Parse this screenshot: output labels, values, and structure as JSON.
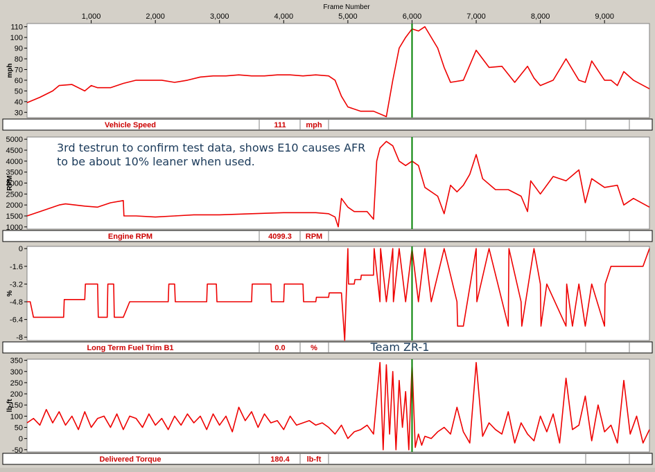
{
  "x_axis": {
    "title": "Frame Number",
    "range": [
      0,
      9700
    ],
    "ticks": [
      1000,
      2000,
      3000,
      4000,
      5000,
      6000,
      7000,
      8000,
      9000
    ],
    "tick_labels": [
      "1,000",
      "2,000",
      "3,000",
      "4,000",
      "5,000",
      "6,000",
      "7,000",
      "8,000",
      "9,000"
    ]
  },
  "cursor_frame": 6000,
  "annotation": "3rd testrun to confirm test data, shows E10 causes AFR to be about 10% leaner when used.",
  "team_label": "Team ZR-1",
  "colors": {
    "trace": "#ee0000",
    "cursor": "#008000",
    "cursor_marker": "#4a7cff",
    "label": "#cc0000",
    "annotation": "#1a3a5a"
  },
  "chart_data": [
    {
      "type": "line",
      "ylabel": "mph",
      "ylim": [
        25,
        113
      ],
      "yticks": [
        30,
        40,
        50,
        60,
        70,
        80,
        90,
        100,
        110
      ],
      "channel": {
        "name": "Vehicle Speed",
        "value": "111",
        "unit": "mph"
      },
      "series": [
        {
          "x": [
            0,
            200,
            400,
            500,
            700,
            900,
            1000,
            1100,
            1300,
            1500,
            1700,
            1900,
            2100,
            2300,
            2500,
            2700,
            2900,
            3100,
            3300,
            3500,
            3700,
            3900,
            4100,
            4300,
            4500,
            4700,
            4800,
            4900,
            5000,
            5200,
            5400,
            5600,
            5700,
            5800,
            5900,
            6000,
            6100,
            6200,
            6400,
            6500,
            6600,
            6800,
            7000,
            7200,
            7400,
            7600,
            7800,
            7900,
            8000,
            8200,
            8400,
            8600,
            8700,
            8800,
            9000,
            9100,
            9200,
            9300,
            9450,
            9700
          ],
          "y": [
            39,
            44,
            50,
            55,
            56,
            50,
            55,
            53,
            53,
            57,
            60,
            60,
            60,
            58,
            60,
            63,
            64,
            64,
            65,
            64,
            64,
            65,
            65,
            64,
            65,
            64,
            60,
            45,
            35,
            31,
            31,
            26,
            60,
            90,
            100,
            108,
            106,
            110,
            90,
            72,
            58,
            60,
            88,
            72,
            73,
            58,
            73,
            62,
            55,
            60,
            80,
            60,
            58,
            78,
            60,
            60,
            55,
            68,
            60,
            52
          ]
        }
      ]
    },
    {
      "type": "line",
      "ylabel": "RPM",
      "ylim": [
        900,
        5100
      ],
      "yticks": [
        1000,
        1500,
        2000,
        2500,
        3000,
        3500,
        4000,
        4500,
        5000
      ],
      "channel": {
        "name": "Engine RPM",
        "value": "4099.3",
        "unit": "RPM"
      },
      "series": [
        {
          "x": [
            0,
            200,
            500,
            600,
            900,
            1100,
            1300,
            1500,
            1510,
            1700,
            2000,
            2300,
            2600,
            3000,
            3500,
            4000,
            4500,
            4700,
            4800,
            4850,
            4900,
            5000,
            5100,
            5300,
            5400,
            5450,
            5500,
            5600,
            5700,
            5800,
            5900,
            6000,
            6100,
            6200,
            6400,
            6500,
            6600,
            6700,
            6800,
            6900,
            7000,
            7100,
            7300,
            7500,
            7700,
            7800,
            7850,
            8000,
            8200,
            8400,
            8600,
            8700,
            8800,
            9000,
            9200,
            9300,
            9450,
            9700
          ],
          "y": [
            1500,
            1700,
            2000,
            2050,
            1950,
            1900,
            2100,
            2200,
            1500,
            1500,
            1450,
            1500,
            1550,
            1550,
            1600,
            1650,
            1650,
            1600,
            1450,
            1000,
            2300,
            1900,
            1700,
            1700,
            1350,
            4000,
            4600,
            4900,
            4700,
            4000,
            3800,
            4000,
            3800,
            2800,
            2400,
            1600,
            2900,
            2600,
            2900,
            3400,
            4300,
            3200,
            2700,
            2700,
            2400,
            1700,
            3100,
            2500,
            3300,
            3100,
            3600,
            2100,
            3200,
            2800,
            2900,
            2000,
            2300,
            1900
          ]
        }
      ]
    },
    {
      "type": "line",
      "ylabel": "%",
      "ylim": [
        -8.3,
        0.2
      ],
      "yticks": [
        0,
        -1.6,
        -3.2,
        -4.8,
        -6.4,
        -8
      ],
      "tick_labels": [
        "0",
        "-1.6",
        "-3.2",
        "-4.8",
        "-6.4",
        "-8"
      ],
      "channel": {
        "name": "Long Term Fuel Trim B1",
        "value": "0.0",
        "unit": "%"
      },
      "series": [
        {
          "x": [
            0,
            50,
            100,
            570,
            580,
            900,
            910,
            1100,
            1110,
            1250,
            1260,
            1350,
            1360,
            1500,
            1600,
            1610,
            2200,
            2210,
            2300,
            2310,
            2800,
            2810,
            2950,
            2960,
            3500,
            3510,
            3800,
            3810,
            4000,
            4010,
            4300,
            4310,
            4500,
            4510,
            4700,
            4710,
            4900,
            4950,
            5000,
            5010,
            5100,
            5110,
            5200,
            5210,
            5400,
            5410,
            5500,
            5510,
            5600,
            5700,
            5710,
            5800,
            5900,
            6000,
            6100,
            6200,
            6300,
            6500,
            6700,
            6710,
            6800,
            7000,
            7010,
            7200,
            7500,
            7510,
            7700,
            7710,
            7900,
            8000,
            8010,
            8100,
            8400,
            8410,
            8500,
            8600,
            8700,
            8800,
            9000,
            9010,
            9100,
            9600,
            9700
          ],
          "y": [
            -4.8,
            -4.8,
            -6.2,
            -6.2,
            -4.6,
            -4.6,
            -3.2,
            -3.2,
            -6.2,
            -6.2,
            -3.2,
            -3.2,
            -6.2,
            -6.2,
            -4.8,
            -4.8,
            -4.8,
            -3.2,
            -3.2,
            -4.8,
            -4.8,
            -3.2,
            -3.2,
            -4.8,
            -4.8,
            -3.2,
            -3.2,
            -4.8,
            -4.8,
            -3.2,
            -3.2,
            -4.8,
            -4.8,
            -4.4,
            -4.4,
            -4.0,
            -4.0,
            -8.3,
            0,
            -3.2,
            -3.2,
            -2.8,
            -2.8,
            -2.4,
            -2.4,
            0,
            -4.8,
            0,
            -4.8,
            0,
            -4.8,
            0,
            -4.8,
            0,
            -4.8,
            0,
            -4.8,
            0,
            -4.8,
            -7.0,
            -7.0,
            0,
            -4.8,
            0,
            -7.0,
            0,
            -4.8,
            -7.0,
            0,
            -3.2,
            -7.0,
            -3.2,
            -7.0,
            -3.2,
            -7.0,
            -3.2,
            -7.0,
            -3.2,
            -7.0,
            -3.2,
            -1.6,
            -1.6,
            0
          ]
        }
      ]
    },
    {
      "type": "line",
      "ylabel": "lb-ft",
      "ylim": [
        -60,
        355
      ],
      "yticks": [
        -50,
        0,
        50,
        100,
        150,
        200,
        250,
        300,
        350
      ],
      "channel": {
        "name": "Delivered Torque",
        "value": "180.4",
        "unit": "lb-ft"
      },
      "series": [
        {
          "x": [
            0,
            100,
            200,
            300,
            400,
            500,
            600,
            700,
            800,
            900,
            1000,
            1100,
            1200,
            1300,
            1400,
            1500,
            1600,
            1700,
            1800,
            1900,
            2000,
            2100,
            2200,
            2300,
            2400,
            2500,
            2600,
            2700,
            2800,
            2900,
            3000,
            3100,
            3200,
            3300,
            3400,
            3500,
            3600,
            3700,
            3800,
            3900,
            4000,
            4100,
            4200,
            4300,
            4400,
            4500,
            4600,
            4700,
            4800,
            4900,
            5000,
            5100,
            5200,
            5300,
            5400,
            5500,
            5550,
            5600,
            5650,
            5700,
            5750,
            5800,
            5850,
            5900,
            5950,
            6000,
            6050,
            6100,
            6150,
            6200,
            6300,
            6400,
            6500,
            6600,
            6700,
            6800,
            6900,
            7000,
            7100,
            7200,
            7300,
            7400,
            7500,
            7600,
            7700,
            7800,
            7900,
            8000,
            8100,
            8200,
            8300,
            8400,
            8500,
            8600,
            8700,
            8800,
            8900,
            9000,
            9100,
            9200,
            9300,
            9400,
            9500,
            9600,
            9700
          ],
          "y": [
            70,
            90,
            60,
            130,
            70,
            120,
            60,
            100,
            40,
            120,
            50,
            90,
            100,
            50,
            110,
            40,
            100,
            90,
            50,
            110,
            60,
            90,
            40,
            100,
            60,
            110,
            70,
            100,
            40,
            110,
            60,
            100,
            30,
            140,
            80,
            120,
            50,
            110,
            70,
            80,
            40,
            100,
            60,
            70,
            80,
            60,
            70,
            50,
            20,
            60,
            0,
            30,
            40,
            60,
            20,
            340,
            -50,
            330,
            20,
            300,
            -50,
            260,
            50,
            210,
            -50,
            340,
            -40,
            20,
            -30,
            10,
            0,
            30,
            50,
            20,
            140,
            30,
            -20,
            340,
            10,
            70,
            40,
            20,
            120,
            -20,
            70,
            20,
            -10,
            100,
            30,
            110,
            -20,
            270,
            40,
            60,
            190,
            -10,
            150,
            30,
            60,
            -20,
            260,
            20,
            100,
            -20,
            40
          ]
        }
      ]
    }
  ]
}
